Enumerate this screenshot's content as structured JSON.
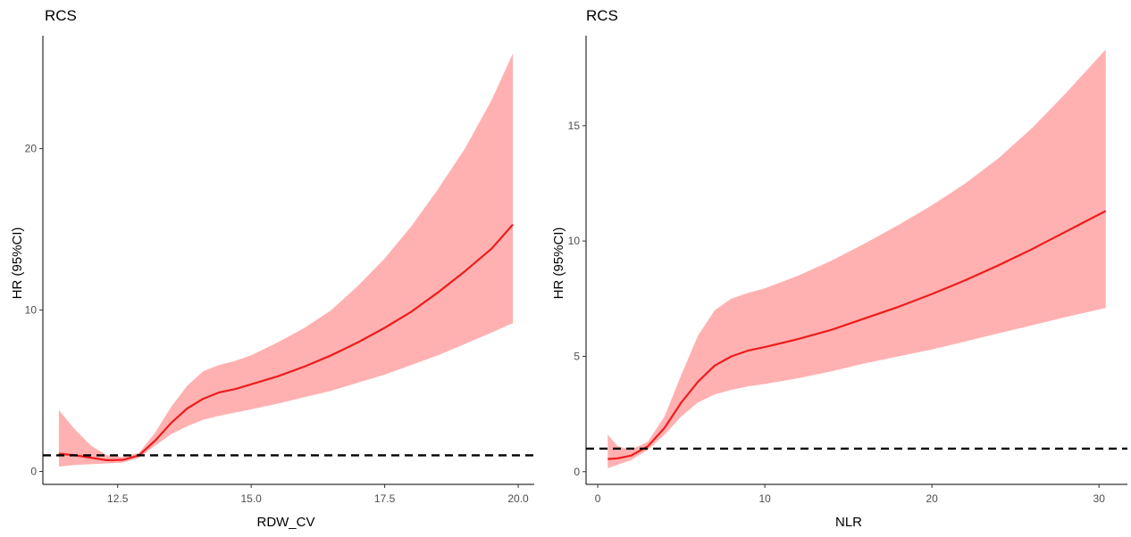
{
  "colors": {
    "ribbon": "#ffb1b1",
    "line": "#ee1c1c",
    "reference": "#000000",
    "axis": "#000000"
  },
  "chart_data": [
    {
      "type": "line",
      "title": "RCS",
      "xlabel": "RDW_CV",
      "ylabel": "HR (95%CI)",
      "xlim": [
        11.1,
        20.3
      ],
      "ylim": [
        -0.8,
        27
      ],
      "xticks": [
        12.5,
        15.0,
        17.5,
        20.0
      ],
      "xtick_labels": [
        "12.5",
        "15.0",
        "17.5",
        "20.0"
      ],
      "yticks": [
        0,
        10,
        20
      ],
      "ytick_labels": [
        "0",
        "10",
        "20"
      ],
      "reference_line": 1,
      "grid": false,
      "series": [
        {
          "x": [
            11.4,
            11.7,
            12.0,
            12.3,
            12.6,
            12.9,
            13.2,
            13.5,
            13.8,
            14.1,
            14.4,
            14.7,
            15.0,
            15.5,
            16.0,
            16.5,
            17.0,
            17.5,
            18.0,
            18.5,
            19.0,
            19.5,
            19.9
          ],
          "y": [
            1.1,
            1.0,
            0.85,
            0.7,
            0.72,
            1.0,
            1.9,
            3.0,
            3.9,
            4.5,
            4.9,
            5.1,
            5.4,
            5.9,
            6.5,
            7.2,
            8.0,
            8.9,
            9.9,
            11.1,
            12.4,
            13.8,
            15.3
          ],
          "lower": [
            0.3,
            0.4,
            0.45,
            0.5,
            0.55,
            0.85,
            1.6,
            2.3,
            2.8,
            3.2,
            3.45,
            3.65,
            3.85,
            4.2,
            4.6,
            5.0,
            5.5,
            6.0,
            6.6,
            7.2,
            7.9,
            8.6,
            9.2
          ],
          "upper": [
            3.8,
            2.6,
            1.6,
            1.0,
            0.9,
            1.15,
            2.4,
            4.0,
            5.3,
            6.2,
            6.6,
            6.85,
            7.2,
            8.0,
            8.9,
            10.0,
            11.5,
            13.2,
            15.2,
            17.5,
            20.0,
            23.0,
            25.9
          ]
        }
      ]
    },
    {
      "type": "line",
      "title": "RCS",
      "xlabel": "NLR",
      "ylabel": "HR (95%CI)",
      "xlim": [
        -0.7,
        31.7
      ],
      "ylim": [
        -0.55,
        18.9
      ],
      "xticks": [
        0,
        10,
        20,
        30
      ],
      "xtick_labels": [
        "0",
        "10",
        "20",
        "30"
      ],
      "yticks": [
        0,
        5,
        10,
        15
      ],
      "ytick_labels": [
        "0",
        "5",
        "10",
        "15"
      ],
      "reference_line": 1,
      "grid": false,
      "series": [
        {
          "x": [
            0.6,
            1.2,
            2.0,
            3.0,
            4.0,
            5.0,
            6.0,
            7.0,
            8.0,
            9.0,
            10.0,
            12.0,
            14.0,
            16.0,
            18.0,
            20.0,
            22.0,
            24.0,
            26.0,
            28.0,
            30.4
          ],
          "y": [
            0.55,
            0.58,
            0.7,
            1.1,
            1.9,
            3.0,
            3.9,
            4.6,
            5.0,
            5.25,
            5.4,
            5.75,
            6.15,
            6.65,
            7.15,
            7.7,
            8.3,
            8.95,
            9.65,
            10.4,
            11.3
          ],
          "lower": [
            0.15,
            0.3,
            0.5,
            0.95,
            1.6,
            2.4,
            3.0,
            3.35,
            3.55,
            3.7,
            3.8,
            4.05,
            4.35,
            4.7,
            5.0,
            5.3,
            5.65,
            6.0,
            6.35,
            6.7,
            7.1
          ],
          "upper": [
            1.6,
            1.1,
            0.95,
            1.3,
            2.4,
            4.2,
            5.9,
            7.0,
            7.5,
            7.75,
            7.95,
            8.5,
            9.15,
            9.9,
            10.7,
            11.55,
            12.5,
            13.6,
            14.9,
            16.4,
            18.3
          ]
        }
      ]
    }
  ]
}
